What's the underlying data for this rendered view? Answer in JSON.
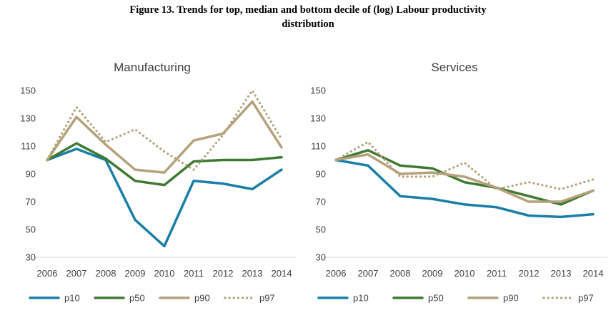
{
  "figure": {
    "title_line1": "Figure 13. Trends for top, median and bottom decile of (log) Labour productivity",
    "title_line2": "distribution"
  },
  "colors": {
    "p10": "#1a7fa6",
    "p50": "#3f7a32",
    "p90": "#b3a27a",
    "p97": "#b3a27a",
    "axis": "#d9d9d9",
    "text": "#404040"
  },
  "chart_data": [
    {
      "type": "line",
      "title": "Manufacturing",
      "x": [
        "2006",
        "2007",
        "2008",
        "2009",
        "2010",
        "2011",
        "2012",
        "2013",
        "2014"
      ],
      "ylim": [
        30,
        150
      ],
      "yticks": [
        "30",
        "50",
        "70",
        "90",
        "110",
        "130",
        "150"
      ],
      "grid": false,
      "legend_position": "bottom",
      "series": [
        {
          "name": "p10",
          "style": "solid",
          "values": [
            100,
            108,
            100,
            57,
            38,
            85,
            83,
            79,
            93
          ]
        },
        {
          "name": "p50",
          "style": "solid",
          "values": [
            100,
            112,
            101,
            85,
            82,
            99,
            100,
            100,
            102
          ]
        },
        {
          "name": "p90",
          "style": "solid",
          "values": [
            100,
            131,
            111,
            93,
            91,
            114,
            119,
            142,
            109
          ]
        },
        {
          "name": "p97",
          "style": "dotted",
          "values": [
            100,
            138,
            113,
            122,
            106,
            93,
            118,
            150,
            115
          ]
        }
      ]
    },
    {
      "type": "line",
      "title": "Services",
      "x": [
        "2006",
        "2007",
        "2008",
        "2009",
        "2010",
        "2011",
        "2012",
        "2013",
        "2014"
      ],
      "ylim": [
        30,
        150
      ],
      "yticks": [
        "30",
        "50",
        "70",
        "90",
        "110",
        "130",
        "150"
      ],
      "grid": false,
      "legend_position": "bottom",
      "series": [
        {
          "name": "p10",
          "style": "solid",
          "values": [
            100,
            96,
            74,
            72,
            68,
            66,
            60,
            59,
            61
          ]
        },
        {
          "name": "p50",
          "style": "solid",
          "values": [
            100,
            107,
            96,
            94,
            84,
            80,
            74,
            68,
            78
          ]
        },
        {
          "name": "p90",
          "style": "solid",
          "values": [
            100,
            104,
            90,
            91,
            88,
            80,
            70,
            70,
            78
          ]
        },
        {
          "name": "p97",
          "style": "dotted",
          "values": [
            100,
            113,
            88,
            88,
            98,
            79,
            84,
            79,
            86
          ]
        }
      ]
    }
  ]
}
